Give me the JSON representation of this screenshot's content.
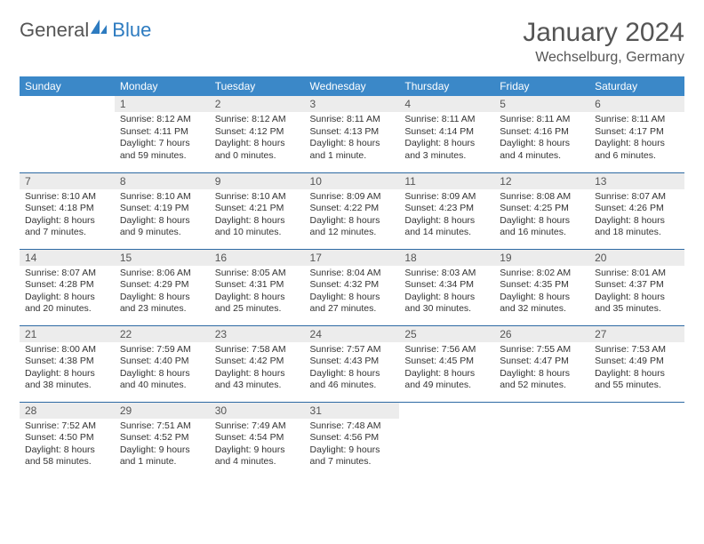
{
  "logo": {
    "general": "General",
    "blue": "Blue"
  },
  "title": "January 2024",
  "location": "Wechselburg, Germany",
  "colors": {
    "header_bg": "#3b88c8",
    "header_text": "#ffffff",
    "daynum_bg": "#ececec",
    "row_divider": "#2d6aa3",
    "text": "#333333",
    "logo_blue": "#2d7bc0"
  },
  "weekdays": [
    "Sunday",
    "Monday",
    "Tuesday",
    "Wednesday",
    "Thursday",
    "Friday",
    "Saturday"
  ],
  "layout": {
    "first_weekday_index": 1,
    "days_in_month": 31
  },
  "days": {
    "1": {
      "sunrise": "8:12 AM",
      "sunset": "4:11 PM",
      "daylight": "7 hours and 59 minutes."
    },
    "2": {
      "sunrise": "8:12 AM",
      "sunset": "4:12 PM",
      "daylight": "8 hours and 0 minutes."
    },
    "3": {
      "sunrise": "8:11 AM",
      "sunset": "4:13 PM",
      "daylight": "8 hours and 1 minute."
    },
    "4": {
      "sunrise": "8:11 AM",
      "sunset": "4:14 PM",
      "daylight": "8 hours and 3 minutes."
    },
    "5": {
      "sunrise": "8:11 AM",
      "sunset": "4:16 PM",
      "daylight": "8 hours and 4 minutes."
    },
    "6": {
      "sunrise": "8:11 AM",
      "sunset": "4:17 PM",
      "daylight": "8 hours and 6 minutes."
    },
    "7": {
      "sunrise": "8:10 AM",
      "sunset": "4:18 PM",
      "daylight": "8 hours and 7 minutes."
    },
    "8": {
      "sunrise": "8:10 AM",
      "sunset": "4:19 PM",
      "daylight": "8 hours and 9 minutes."
    },
    "9": {
      "sunrise": "8:10 AM",
      "sunset": "4:21 PM",
      "daylight": "8 hours and 10 minutes."
    },
    "10": {
      "sunrise": "8:09 AM",
      "sunset": "4:22 PM",
      "daylight": "8 hours and 12 minutes."
    },
    "11": {
      "sunrise": "8:09 AM",
      "sunset": "4:23 PM",
      "daylight": "8 hours and 14 minutes."
    },
    "12": {
      "sunrise": "8:08 AM",
      "sunset": "4:25 PM",
      "daylight": "8 hours and 16 minutes."
    },
    "13": {
      "sunrise": "8:07 AM",
      "sunset": "4:26 PM",
      "daylight": "8 hours and 18 minutes."
    },
    "14": {
      "sunrise": "8:07 AM",
      "sunset": "4:28 PM",
      "daylight": "8 hours and 20 minutes."
    },
    "15": {
      "sunrise": "8:06 AM",
      "sunset": "4:29 PM",
      "daylight": "8 hours and 23 minutes."
    },
    "16": {
      "sunrise": "8:05 AM",
      "sunset": "4:31 PM",
      "daylight": "8 hours and 25 minutes."
    },
    "17": {
      "sunrise": "8:04 AM",
      "sunset": "4:32 PM",
      "daylight": "8 hours and 27 minutes."
    },
    "18": {
      "sunrise": "8:03 AM",
      "sunset": "4:34 PM",
      "daylight": "8 hours and 30 minutes."
    },
    "19": {
      "sunrise": "8:02 AM",
      "sunset": "4:35 PM",
      "daylight": "8 hours and 32 minutes."
    },
    "20": {
      "sunrise": "8:01 AM",
      "sunset": "4:37 PM",
      "daylight": "8 hours and 35 minutes."
    },
    "21": {
      "sunrise": "8:00 AM",
      "sunset": "4:38 PM",
      "daylight": "8 hours and 38 minutes."
    },
    "22": {
      "sunrise": "7:59 AM",
      "sunset": "4:40 PM",
      "daylight": "8 hours and 40 minutes."
    },
    "23": {
      "sunrise": "7:58 AM",
      "sunset": "4:42 PM",
      "daylight": "8 hours and 43 minutes."
    },
    "24": {
      "sunrise": "7:57 AM",
      "sunset": "4:43 PM",
      "daylight": "8 hours and 46 minutes."
    },
    "25": {
      "sunrise": "7:56 AM",
      "sunset": "4:45 PM",
      "daylight": "8 hours and 49 minutes."
    },
    "26": {
      "sunrise": "7:55 AM",
      "sunset": "4:47 PM",
      "daylight": "8 hours and 52 minutes."
    },
    "27": {
      "sunrise": "7:53 AM",
      "sunset": "4:49 PM",
      "daylight": "8 hours and 55 minutes."
    },
    "28": {
      "sunrise": "7:52 AM",
      "sunset": "4:50 PM",
      "daylight": "8 hours and 58 minutes."
    },
    "29": {
      "sunrise": "7:51 AM",
      "sunset": "4:52 PM",
      "daylight": "9 hours and 1 minute."
    },
    "30": {
      "sunrise": "7:49 AM",
      "sunset": "4:54 PM",
      "daylight": "9 hours and 4 minutes."
    },
    "31": {
      "sunrise": "7:48 AM",
      "sunset": "4:56 PM",
      "daylight": "9 hours and 7 minutes."
    }
  },
  "labels": {
    "sunrise": "Sunrise:",
    "sunset": "Sunset:",
    "daylight": "Daylight:"
  }
}
